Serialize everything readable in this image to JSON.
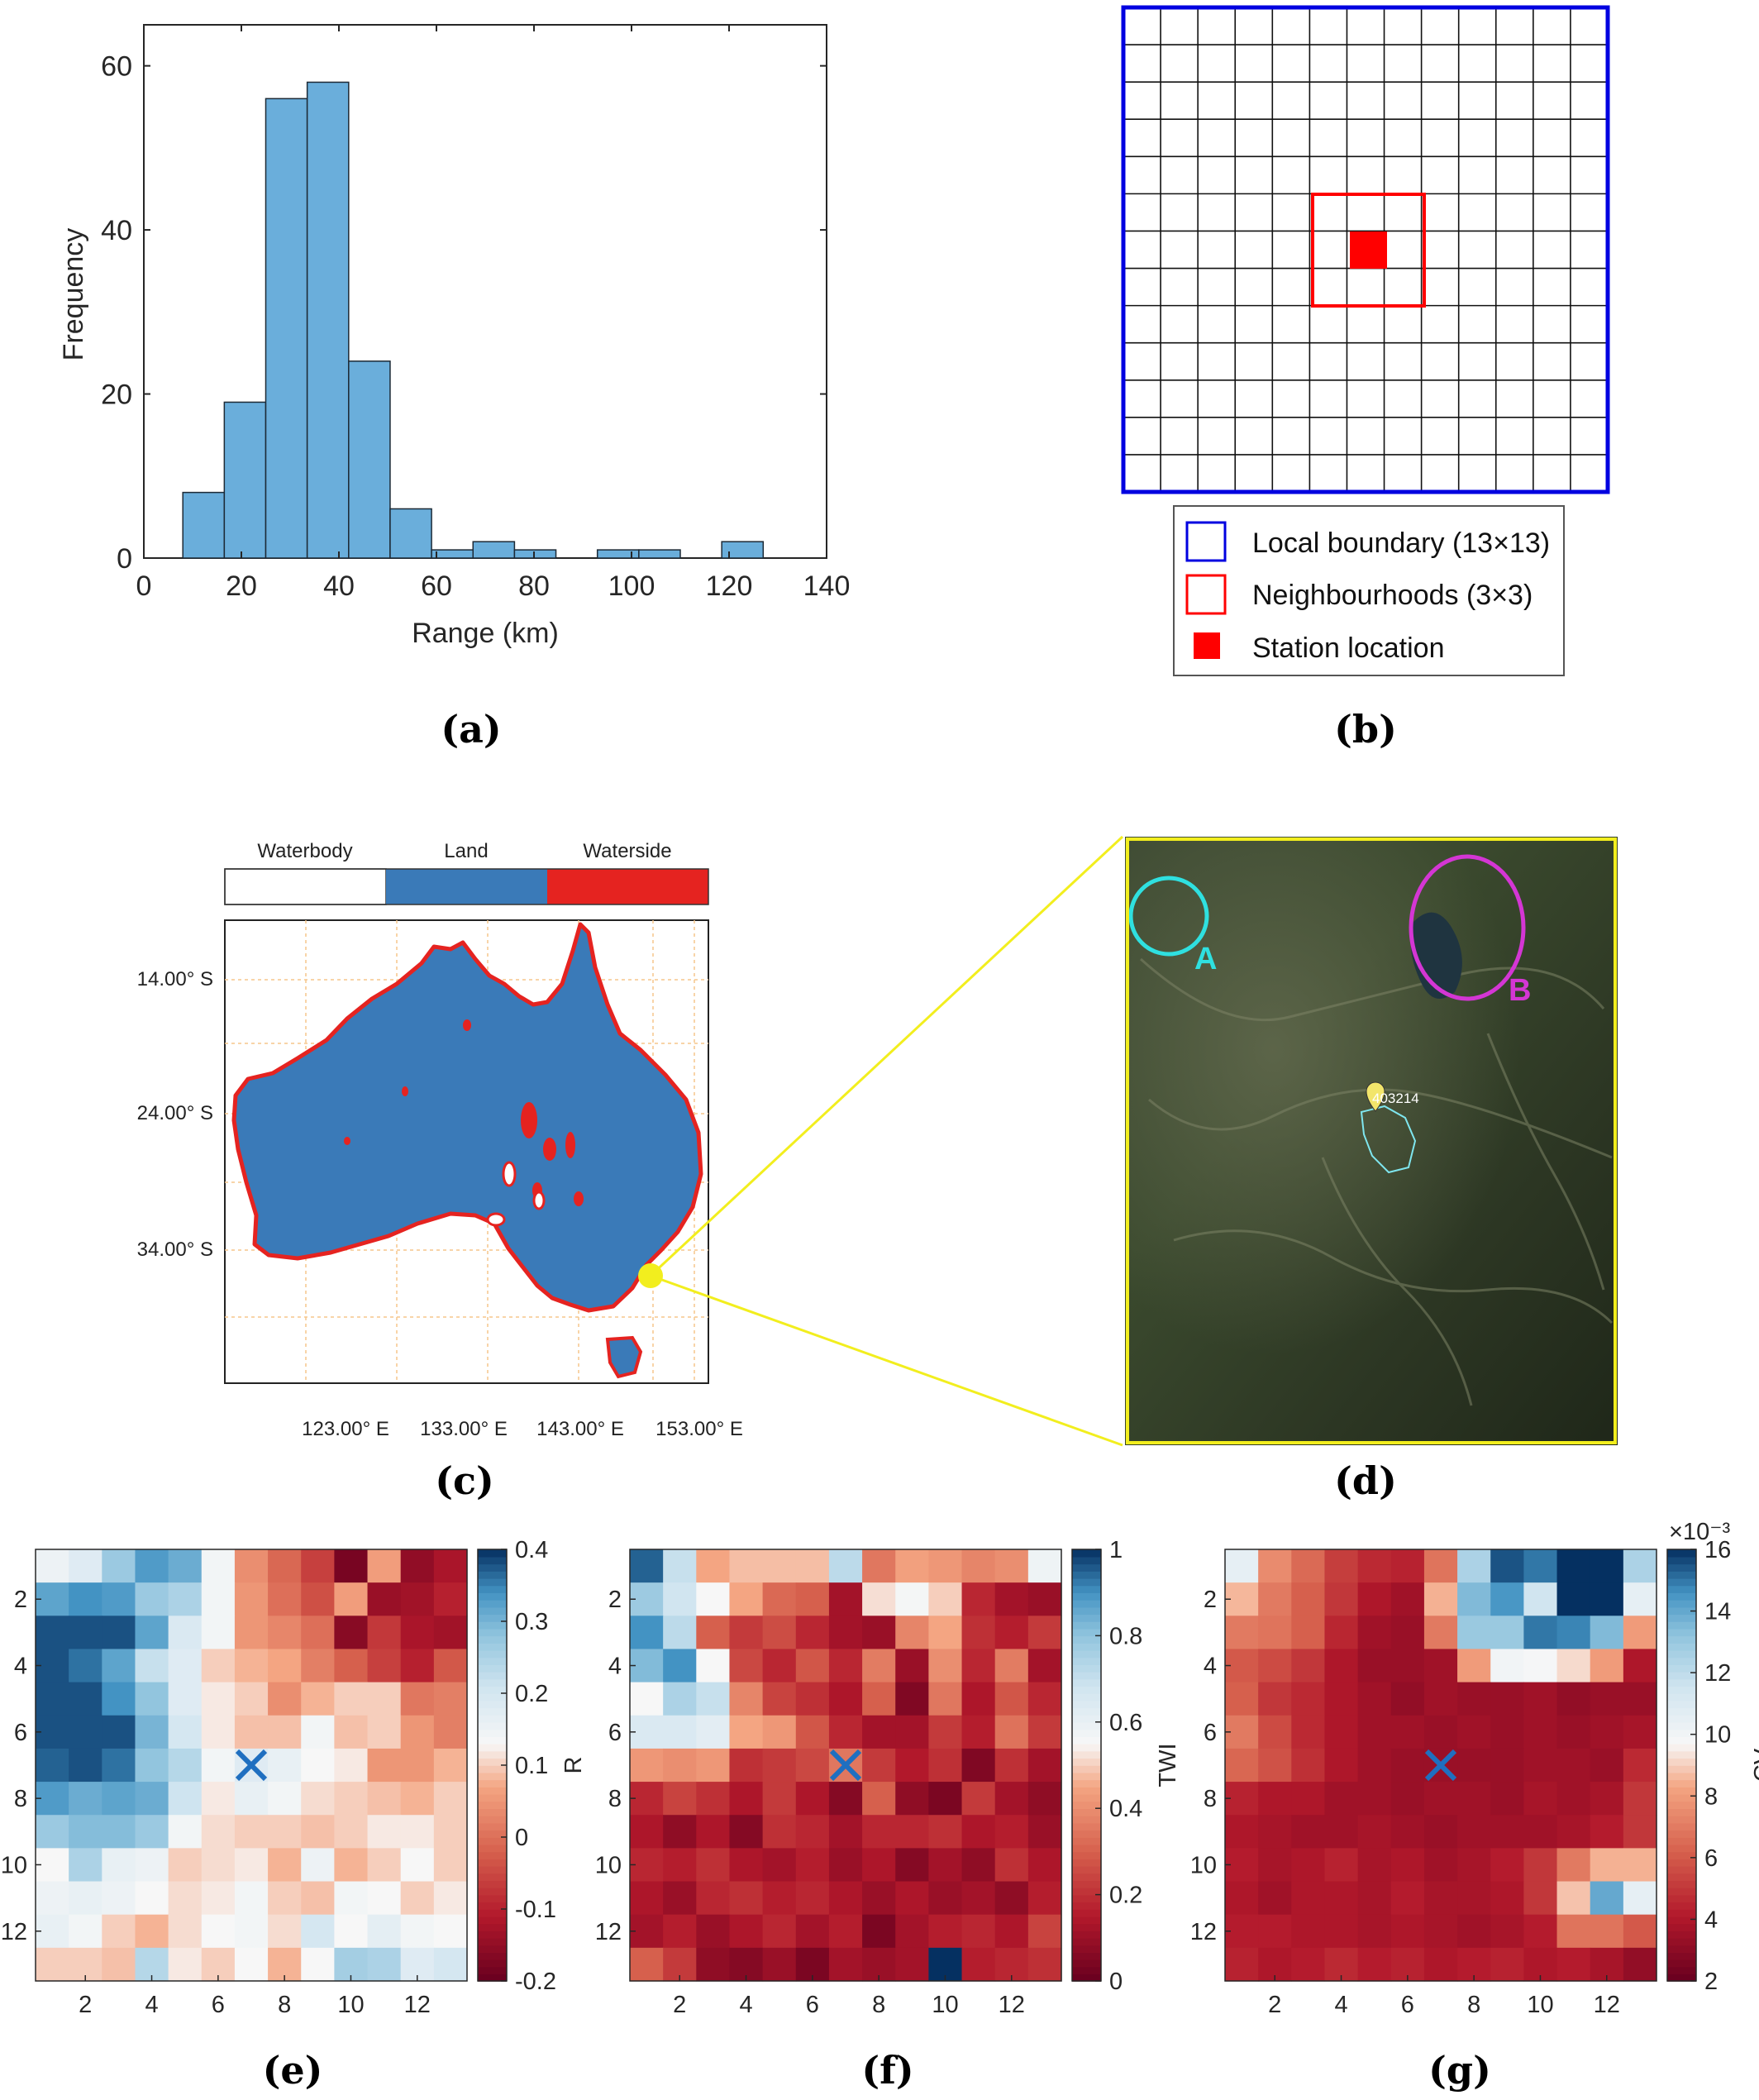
{
  "colors": {
    "bar_fill": "#6aaedb",
    "bar_edge": "#1d2a36",
    "blue": "#0000e0",
    "red": "#ff0000",
    "land": "#3a7ab8",
    "waterside": "#e52320",
    "yellow": "#f2ee1e",
    "cyan": "#2fe0e0",
    "magenta": "#d436d4"
  },
  "captions": {
    "a": "(a)",
    "b": "(b)",
    "c": "(c)",
    "d": "(d)",
    "e": "(e)",
    "f": "(f)",
    "g": "(g)"
  },
  "panel_b": {
    "legend": [
      {
        "label": "Local boundary (13×13)",
        "icon": "blue-square-icon"
      },
      {
        "label": "Neighbourhoods (3×3)",
        "icon": "red-square-icon"
      },
      {
        "label": "Station location",
        "icon": "red-filled-square-icon"
      }
    ]
  },
  "panel_c": {
    "legend": [
      "Waterbody",
      "Land",
      "Waterside"
    ],
    "lat_labels": [
      "14.00° S",
      "24.00° S",
      "34.00° S"
    ],
    "lon_labels": [
      "123.00° E",
      "133.00° E",
      "143.00° E",
      "153.00° E"
    ]
  },
  "panel_d": {
    "station_id": "403214",
    "marker_a": "A",
    "marker_b": "B",
    "map_icon": "map-pin-icon"
  },
  "chart_data": [
    {
      "id": "a",
      "type": "bar",
      "title": "",
      "xlabel": "Range (km)",
      "ylabel": "Frequency",
      "xlim": [
        0,
        140
      ],
      "ylim": [
        0,
        65
      ],
      "xticks": [
        0,
        20,
        40,
        60,
        80,
        100,
        120,
        140
      ],
      "yticks": [
        0,
        20,
        40,
        60
      ],
      "bin_edges": [
        8,
        16.5,
        25,
        33.5,
        42,
        50.5,
        59,
        67.5,
        76,
        84.5,
        93,
        101.5,
        110,
        118.5,
        127
      ],
      "values": [
        8,
        19,
        56,
        58,
        24,
        6,
        1,
        2,
        1,
        0,
        1,
        1,
        0,
        2
      ]
    },
    {
      "id": "e",
      "type": "heatmap",
      "colorbar_label": "R",
      "clim": [
        -0.2,
        0.4
      ],
      "colorbar_ticks": [
        "-0.2",
        "-0.1",
        "0",
        "0.1",
        "0.2",
        "0.3",
        "0.4"
      ],
      "axis_ticks": [
        "2",
        "4",
        "6",
        "8",
        "10",
        "12"
      ],
      "marker_cell": [
        7,
        7
      ],
      "grid": [
        [
          0.15,
          0.18,
          0.27,
          0.33,
          0.31,
          0.14,
          0.04,
          -0.01,
          -0.06,
          -0.18,
          0.06,
          -0.15,
          -0.12
        ],
        [
          0.32,
          0.34,
          0.33,
          0.27,
          0.25,
          0.14,
          0.05,
          0.0,
          -0.04,
          0.06,
          -0.14,
          -0.13,
          -0.1
        ],
        [
          0.38,
          0.38,
          0.38,
          0.32,
          0.19,
          0.14,
          0.05,
          0.03,
          0.0,
          -0.16,
          -0.07,
          -0.12,
          -0.13
        ],
        [
          0.38,
          0.36,
          0.32,
          0.22,
          0.18,
          0.1,
          0.08,
          0.07,
          0.02,
          -0.02,
          -0.06,
          -0.1,
          -0.03
        ],
        [
          0.38,
          0.38,
          0.34,
          0.28,
          0.18,
          0.12,
          0.1,
          0.04,
          0.08,
          0.1,
          0.1,
          0.01,
          0.02
        ],
        [
          0.38,
          0.38,
          0.38,
          0.3,
          0.2,
          0.12,
          0.09,
          0.09,
          0.14,
          0.09,
          0.1,
          0.05,
          0.02
        ],
        [
          0.37,
          0.38,
          0.36,
          0.28,
          0.24,
          0.14,
          0.18,
          0.16,
          0.13,
          0.12,
          0.05,
          0.05,
          0.08
        ],
        [
          0.33,
          0.31,
          0.32,
          0.31,
          0.21,
          0.12,
          0.16,
          0.14,
          0.11,
          0.1,
          0.09,
          0.08,
          0.1
        ],
        [
          0.27,
          0.29,
          0.29,
          0.27,
          0.14,
          0.11,
          0.1,
          0.1,
          0.09,
          0.1,
          0.12,
          0.12,
          0.1
        ],
        [
          0.13,
          0.25,
          0.16,
          0.15,
          0.1,
          0.11,
          0.12,
          0.08,
          0.15,
          0.08,
          0.1,
          0.13,
          0.1
        ],
        [
          0.15,
          0.16,
          0.15,
          0.13,
          0.11,
          0.12,
          0.14,
          0.1,
          0.09,
          0.14,
          0.13,
          0.1,
          0.12
        ],
        [
          0.16,
          0.14,
          0.1,
          0.08,
          0.11,
          0.13,
          0.14,
          0.11,
          0.2,
          0.13,
          0.17,
          0.14,
          0.13
        ],
        [
          0.1,
          0.1,
          0.09,
          0.24,
          0.12,
          0.1,
          0.13,
          0.08,
          0.13,
          0.26,
          0.25,
          0.18,
          0.2
        ]
      ]
    },
    {
      "id": "f",
      "type": "heatmap",
      "colorbar_label": "TWI",
      "clim": [
        0,
        1
      ],
      "colorbar_ticks": [
        "0",
        "0.2",
        "0.4",
        "0.6",
        "0.8",
        "1"
      ],
      "axis_ticks": [
        "2",
        "4",
        "6",
        "8",
        "10",
        "12"
      ],
      "marker_cell": [
        7,
        7
      ],
      "grid": [
        [
          0.95,
          0.7,
          0.45,
          0.48,
          0.48,
          0.48,
          0.72,
          0.35,
          0.44,
          0.42,
          0.38,
          0.4,
          0.58
        ],
        [
          0.78,
          0.68,
          0.55,
          0.45,
          0.32,
          0.3,
          0.12,
          0.52,
          0.56,
          0.5,
          0.18,
          0.12,
          0.1
        ],
        [
          0.9,
          0.72,
          0.3,
          0.22,
          0.26,
          0.18,
          0.12,
          0.1,
          0.38,
          0.45,
          0.2,
          0.16,
          0.22
        ],
        [
          0.82,
          0.9,
          0.55,
          0.25,
          0.18,
          0.28,
          0.18,
          0.36,
          0.1,
          0.4,
          0.18,
          0.36,
          0.12
        ],
        [
          0.55,
          0.75,
          0.7,
          0.38,
          0.24,
          0.2,
          0.14,
          0.3,
          0.05,
          0.35,
          0.14,
          0.28,
          0.18
        ],
        [
          0.65,
          0.65,
          0.62,
          0.45,
          0.42,
          0.28,
          0.18,
          0.12,
          0.12,
          0.22,
          0.16,
          0.34,
          0.22
        ],
        [
          0.42,
          0.4,
          0.42,
          0.2,
          0.22,
          0.25,
          0.35,
          0.22,
          0.15,
          0.2,
          0.05,
          0.2,
          0.12
        ],
        [
          0.18,
          0.24,
          0.2,
          0.14,
          0.22,
          0.14,
          0.06,
          0.3,
          0.08,
          0.04,
          0.22,
          0.12,
          0.08
        ],
        [
          0.14,
          0.08,
          0.14,
          0.06,
          0.2,
          0.18,
          0.12,
          0.18,
          0.18,
          0.2,
          0.14,
          0.16,
          0.1
        ],
        [
          0.18,
          0.16,
          0.2,
          0.14,
          0.12,
          0.16,
          0.1,
          0.14,
          0.06,
          0.12,
          0.08,
          0.2,
          0.14
        ],
        [
          0.14,
          0.1,
          0.18,
          0.2,
          0.16,
          0.18,
          0.14,
          0.1,
          0.14,
          0.1,
          0.12,
          0.08,
          0.16
        ],
        [
          0.12,
          0.16,
          0.1,
          0.14,
          0.18,
          0.12,
          0.16,
          0.04,
          0.12,
          0.16,
          0.18,
          0.14,
          0.24
        ],
        [
          0.3,
          0.22,
          0.08,
          0.06,
          0.1,
          0.04,
          0.12,
          0.1,
          0.12,
          1.0,
          0.16,
          0.18,
          0.2
        ]
      ]
    },
    {
      "id": "g",
      "type": "heatmap",
      "colorbar_label": "CV",
      "exponent_label": "×10⁻³",
      "clim": [
        2,
        16
      ],
      "colorbar_ticks": [
        "2",
        "4",
        "6",
        "8",
        "10",
        "12",
        "14",
        "16"
      ],
      "axis_ticks": [
        "2",
        "4",
        "6",
        "8",
        "10",
        "12"
      ],
      "marker_cell": [
        7,
        7
      ],
      "grid": [
        [
          10.5,
          7.5,
          6.5,
          5.2,
          4.6,
          4.4,
          6.8,
          12.5,
          15.5,
          15.0,
          16.0,
          16.0,
          12.5
        ],
        [
          8.6,
          7.0,
          6.2,
          5.0,
          4.0,
          3.6,
          8.5,
          13.5,
          14.5,
          11.5,
          16.0,
          16.0,
          10.5
        ],
        [
          7.0,
          6.8,
          6.2,
          4.5,
          3.6,
          3.4,
          7.0,
          13.0,
          13.0,
          15.0,
          14.8,
          13.5,
          8.0
        ],
        [
          6.0,
          5.6,
          5.0,
          4.0,
          3.4,
          3.4,
          3.6,
          8.0,
          10.0,
          9.8,
          9.2,
          8.0,
          4.0
        ],
        [
          6.2,
          5.0,
          4.6,
          4.0,
          3.6,
          3.2,
          3.6,
          3.4,
          3.4,
          3.6,
          3.2,
          3.4,
          3.4
        ],
        [
          7.0,
          5.6,
          4.6,
          4.0,
          3.6,
          3.6,
          3.4,
          3.6,
          3.4,
          3.6,
          3.4,
          3.6,
          3.8
        ],
        [
          6.4,
          5.8,
          4.8,
          4.0,
          3.6,
          3.4,
          3.4,
          3.4,
          3.4,
          3.6,
          3.6,
          3.4,
          4.6
        ],
        [
          4.4,
          4.0,
          4.0,
          3.6,
          3.6,
          3.4,
          3.6,
          3.6,
          3.4,
          3.8,
          3.6,
          3.8,
          5.0
        ],
        [
          4.0,
          3.8,
          3.6,
          3.6,
          3.8,
          3.6,
          3.4,
          3.6,
          3.6,
          3.6,
          3.8,
          4.2,
          5.0
        ],
        [
          4.2,
          3.8,
          4.0,
          4.4,
          3.8,
          4.0,
          3.6,
          3.8,
          4.2,
          5.0,
          7.0,
          8.5,
          8.5
        ],
        [
          4.0,
          3.6,
          4.0,
          4.0,
          3.8,
          4.2,
          3.8,
          3.8,
          4.0,
          5.0,
          8.8,
          14.0,
          10.5
        ],
        [
          4.2,
          4.2,
          4.0,
          4.0,
          3.8,
          4.0,
          3.8,
          3.6,
          3.8,
          4.2,
          6.8,
          6.8,
          6.0
        ],
        [
          4.4,
          4.0,
          4.2,
          4.6,
          4.2,
          4.4,
          4.0,
          4.2,
          4.4,
          4.0,
          4.2,
          3.8,
          3.2
        ]
      ]
    }
  ]
}
